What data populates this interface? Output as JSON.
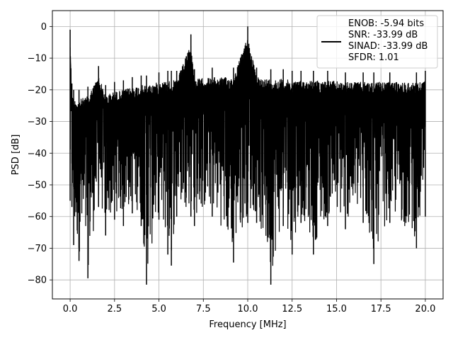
{
  "chart_data": {
    "type": "line",
    "xlabel": "Frequency [MHz]",
    "ylabel": "PSD [dB]",
    "xlim": [
      -1.0,
      21.0
    ],
    "ylim": [
      -86.0,
      5.0
    ],
    "grid": true,
    "xticks": [
      {
        "value": 0.0,
        "label": "0.0"
      },
      {
        "value": 2.5,
        "label": "2.5"
      },
      {
        "value": 5.0,
        "label": "5.0"
      },
      {
        "value": 7.5,
        "label": "7.5"
      },
      {
        "value": 10.0,
        "label": "10.0"
      },
      {
        "value": 12.5,
        "label": "12.5"
      },
      {
        "value": 15.0,
        "label": "15.0"
      },
      {
        "value": 17.5,
        "label": "17.5"
      },
      {
        "value": 20.0,
        "label": "20.0"
      }
    ],
    "yticks": [
      {
        "value": 0,
        "label": "0"
      },
      {
        "value": -10,
        "label": "−10"
      },
      {
        "value": -20,
        "label": "−20"
      },
      {
        "value": -30,
        "label": "−30"
      },
      {
        "value": -40,
        "label": "−40"
      },
      {
        "value": -50,
        "label": "−50"
      },
      {
        "value": -60,
        "label": "−60"
      },
      {
        "value": -70,
        "label": "−70"
      },
      {
        "value": -80,
        "label": "−80"
      }
    ],
    "legend_position": "top-right",
    "legend": [
      "ENOB: -5.94 bits",
      "SNR: -33.99 dB",
      "SINAD: -33.99 dB",
      "SFDR: 1.01"
    ],
    "series": [
      {
        "color": "#000000",
        "x_range": [
          0.0,
          20.0
        ],
        "envelope": [
          [
            0.0,
            -1.0,
            -55.0
          ],
          [
            0.1,
            -18.0,
            -57.0
          ],
          [
            0.2,
            -20.0,
            -69.0
          ],
          [
            0.5,
            -20.0,
            -74.0
          ],
          [
            1.0,
            -19.0,
            -79.5
          ],
          [
            1.6,
            -12.5,
            -57.0
          ],
          [
            2.0,
            -18.5,
            -66.0
          ],
          [
            2.5,
            -17.5,
            -61.0
          ],
          [
            3.0,
            -17.0,
            -63.0
          ],
          [
            3.5,
            -16.0,
            -59.0
          ],
          [
            4.0,
            -15.5,
            -63.0
          ],
          [
            4.3,
            -15.5,
            -81.5
          ],
          [
            5.0,
            -14.5,
            -61.0
          ],
          [
            5.5,
            -14.0,
            -72.0
          ],
          [
            5.7,
            -14.0,
            -75.5
          ],
          [
            6.0,
            -14.0,
            -60.0
          ],
          [
            6.8,
            -2.5,
            -60.0
          ],
          [
            7.0,
            -13.5,
            -63.0
          ],
          [
            8.0,
            -13.0,
            -60.0
          ],
          [
            9.2,
            -13.0,
            -74.5
          ],
          [
            10.0,
            0.0,
            -62.0
          ],
          [
            10.5,
            -13.0,
            -62.0
          ],
          [
            11.3,
            -13.5,
            -81.5
          ],
          [
            12.0,
            -13.5,
            -63.0
          ],
          [
            12.5,
            -14.0,
            -72.0
          ],
          [
            13.0,
            -14.0,
            -62.0
          ],
          [
            13.7,
            -14.0,
            -72.0
          ],
          [
            14.5,
            -14.0,
            -63.0
          ],
          [
            15.5,
            -14.5,
            -64.0
          ],
          [
            16.5,
            -14.5,
            -62.0
          ],
          [
            17.1,
            -14.5,
            -75.0
          ],
          [
            18.0,
            -14.5,
            -62.0
          ],
          [
            19.5,
            -14.5,
            -70.0
          ],
          [
            20.0,
            -14.0,
            -60.0
          ]
        ]
      }
    ]
  }
}
